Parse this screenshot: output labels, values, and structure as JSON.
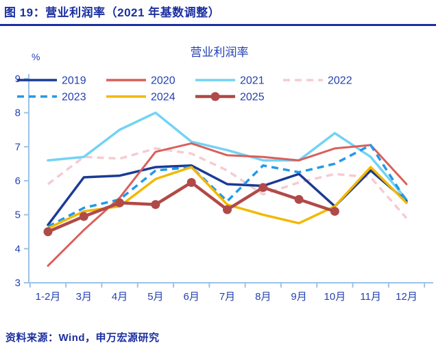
{
  "header": {
    "title": "图 19：营业利润率（2021 年基数调整）"
  },
  "footer": {
    "source": "资料来源：Wind，申万宏源研究"
  },
  "colors": {
    "title_blue": "#1B2FA0",
    "axis_text_blue": "#2440B0",
    "axis_line_blue": "#9CC2E5",
    "s2019": "#1A3A94",
    "s2020": "#D95F5B",
    "s2021": "#72D3F4",
    "s2022": "#F5CBD2",
    "s2023": "#2299E8",
    "s2024": "#F3B800",
    "s2025": "#B04A48"
  },
  "chart_data": {
    "type": "line",
    "title": "营业利润率",
    "ylabel": "%",
    "xlabel": "",
    "ylim": [
      3,
      9
    ],
    "yticks": [
      3,
      4,
      5,
      6,
      7,
      8,
      9
    ],
    "grid": false,
    "legend_position": "top",
    "categories": [
      "1-2月",
      "3月",
      "4月",
      "5月",
      "6月",
      "7月",
      "8月",
      "9月",
      "10月",
      "11月",
      "12月"
    ],
    "series": [
      {
        "name": "2019",
        "color": "#1A3A94",
        "style": "solid",
        "width": 3.5,
        "values": [
          4.7,
          6.1,
          6.15,
          6.4,
          6.45,
          5.9,
          5.85,
          6.2,
          5.25,
          6.3,
          5.4
        ]
      },
      {
        "name": "2020",
        "color": "#D95F5B",
        "style": "solid",
        "width": 3,
        "values": [
          3.5,
          4.55,
          5.5,
          6.85,
          7.1,
          6.75,
          6.7,
          6.6,
          6.95,
          7.05,
          5.9
        ]
      },
      {
        "name": "2021",
        "color": "#72D3F4",
        "style": "solid",
        "width": 3.5,
        "values": [
          6.6,
          6.7,
          7.5,
          8.0,
          7.15,
          6.9,
          6.6,
          6.6,
          7.4,
          6.7,
          5.45
        ]
      },
      {
        "name": "2022",
        "color": "#F5CBD2",
        "style": "dashed",
        "width": 3.5,
        "values": [
          5.9,
          6.7,
          6.65,
          6.95,
          6.8,
          6.3,
          5.6,
          5.95,
          6.2,
          6.1,
          4.9
        ]
      },
      {
        "name": "2023",
        "color": "#2299E8",
        "style": "dashed",
        "width": 3.5,
        "values": [
          4.65,
          5.2,
          5.45,
          6.3,
          6.4,
          5.4,
          6.45,
          6.25,
          6.5,
          7.05,
          5.4
        ]
      },
      {
        "name": "2024",
        "color": "#F3B800",
        "style": "solid",
        "width": 3.5,
        "values": [
          4.6,
          5.1,
          5.25,
          6.05,
          6.4,
          5.3,
          5.0,
          4.75,
          5.25,
          6.4,
          5.35
        ]
      },
      {
        "name": "2025",
        "color": "#B04A48",
        "style": "solid-marker",
        "width": 4.5,
        "values": [
          4.5,
          4.95,
          5.35,
          5.3,
          5.95,
          5.15,
          5.8,
          5.45,
          5.1,
          null,
          null
        ]
      }
    ]
  }
}
